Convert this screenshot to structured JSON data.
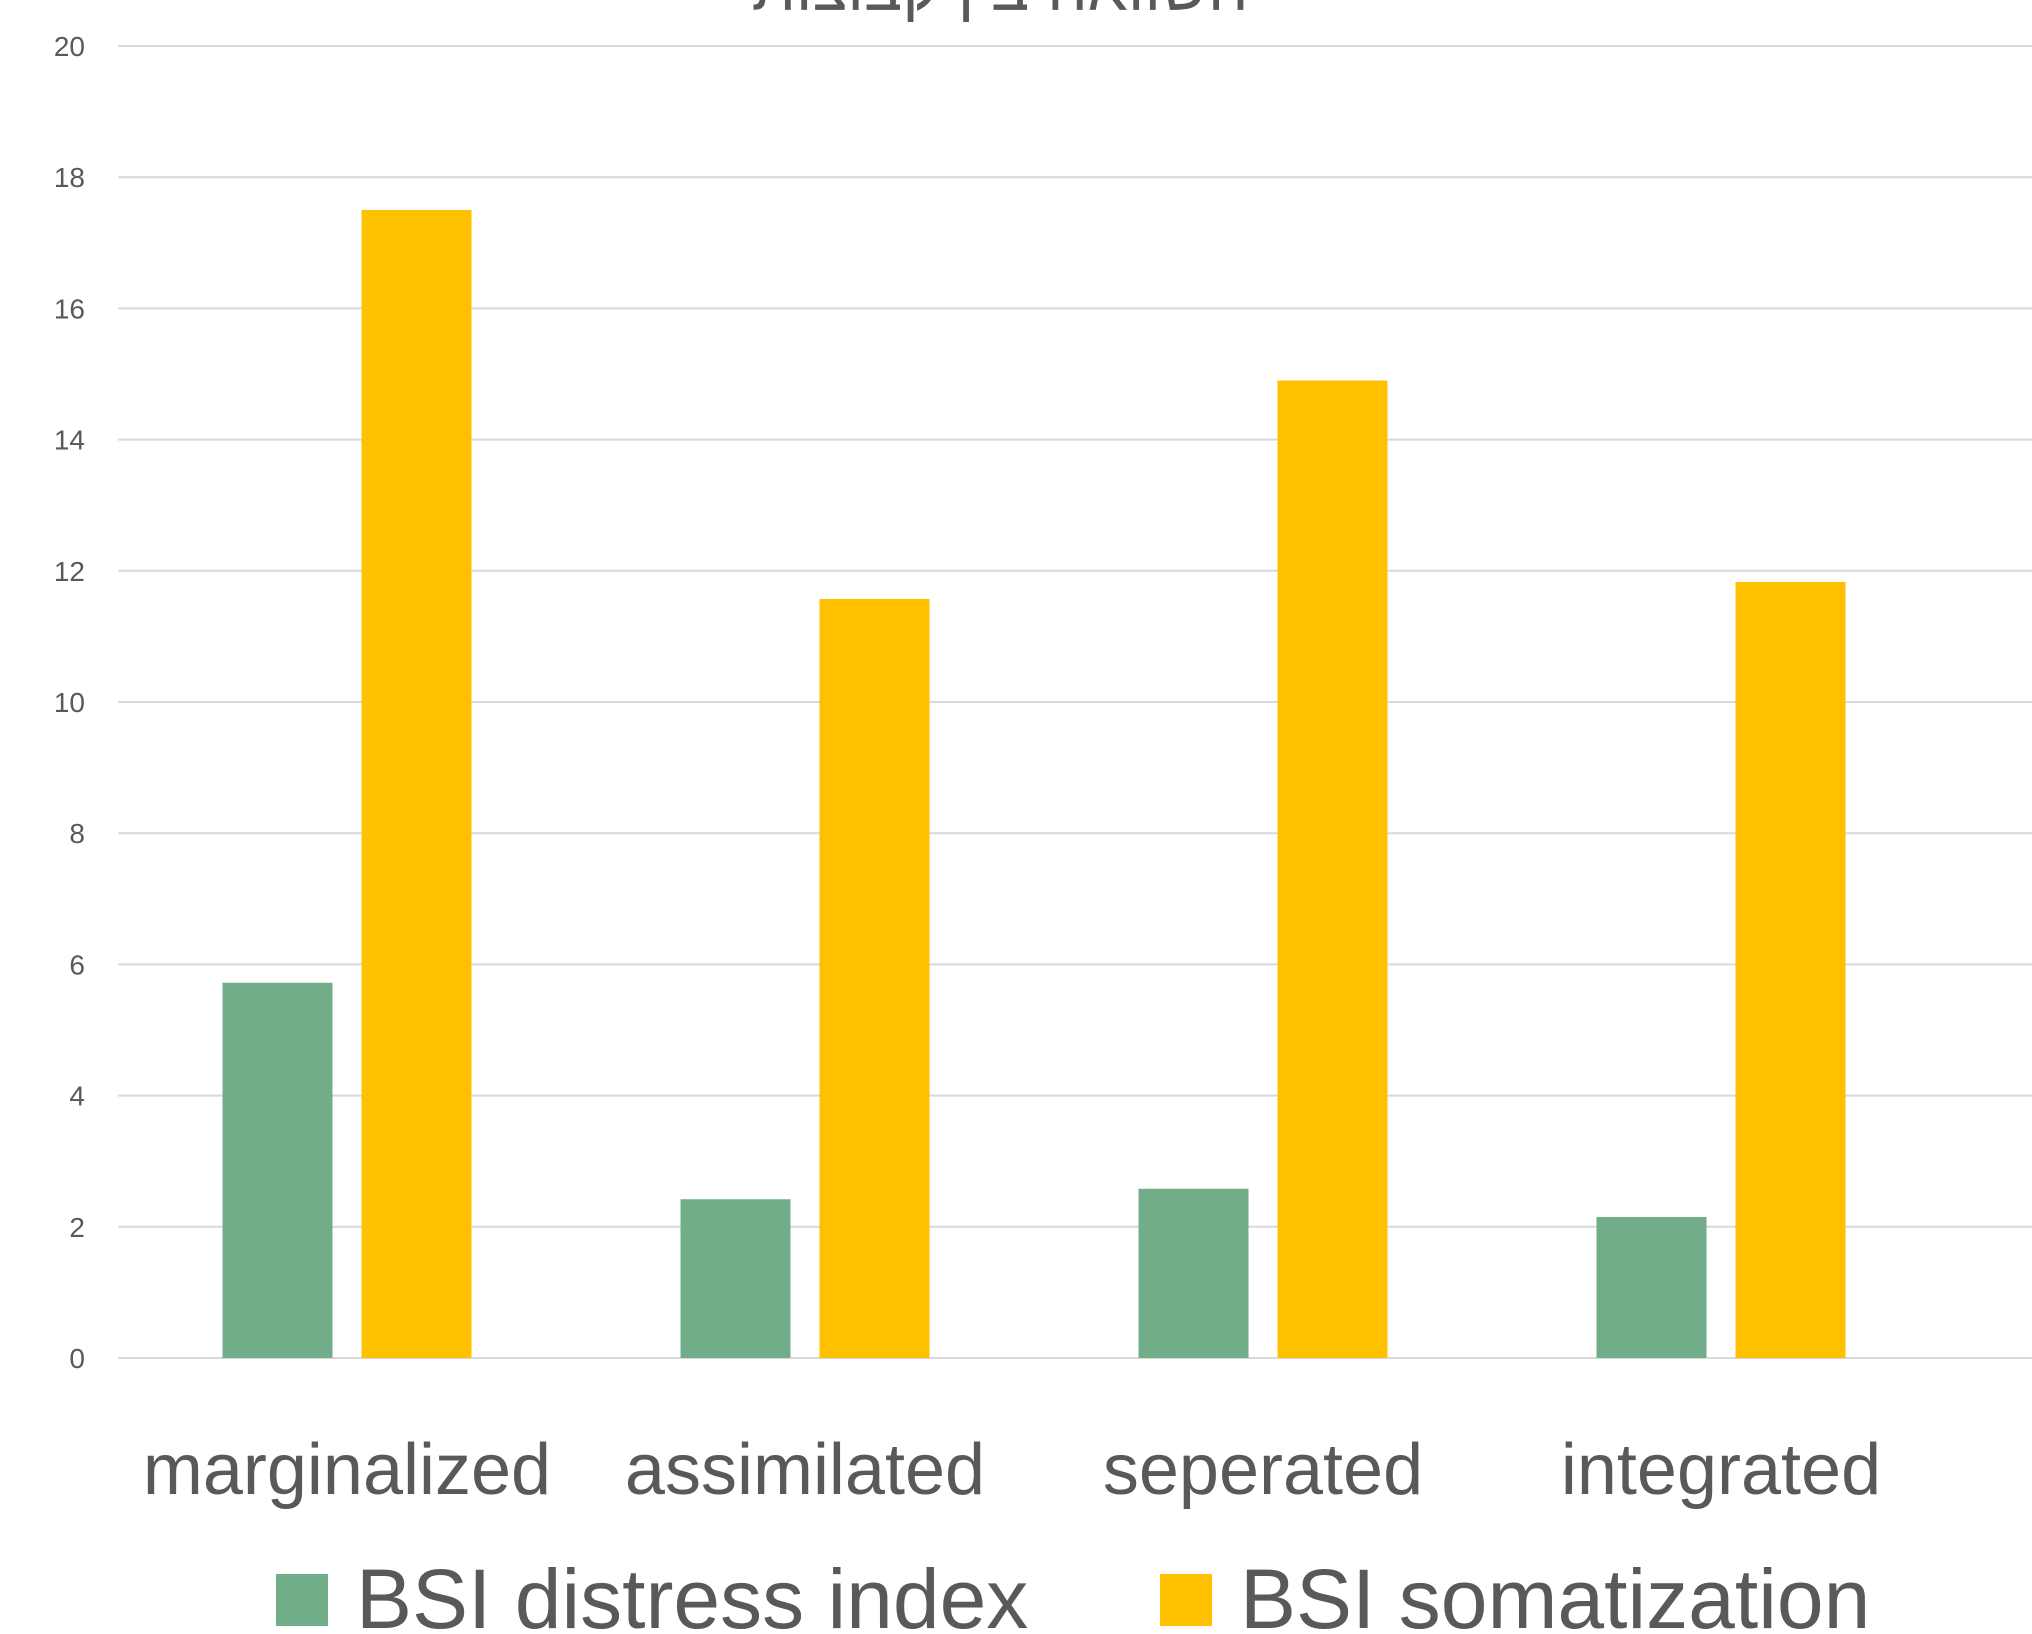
{
  "chart_data": {
    "type": "bar",
    "title": "השוואה בין קבוצות",
    "categories": [
      "marginalized",
      "assimilated",
      "seperated",
      "integrated"
    ],
    "series": [
      {
        "name": "BSI distress index",
        "color": "#70ad88",
        "values": [
          5.72,
          2.42,
          2.58,
          2.15
        ]
      },
      {
        "name": "BSI somatization",
        "color": "#ffc000",
        "values": [
          17.5,
          11.57,
          14.9,
          11.83
        ]
      }
    ],
    "ylim": [
      0,
      20
    ],
    "yticks": [
      "0",
      "2",
      "4",
      "6",
      "8",
      "10",
      "12",
      "14",
      "16",
      "18",
      "20"
    ],
    "xlabel": "",
    "ylabel": "",
    "grid": true,
    "legend_position": "bottom"
  }
}
